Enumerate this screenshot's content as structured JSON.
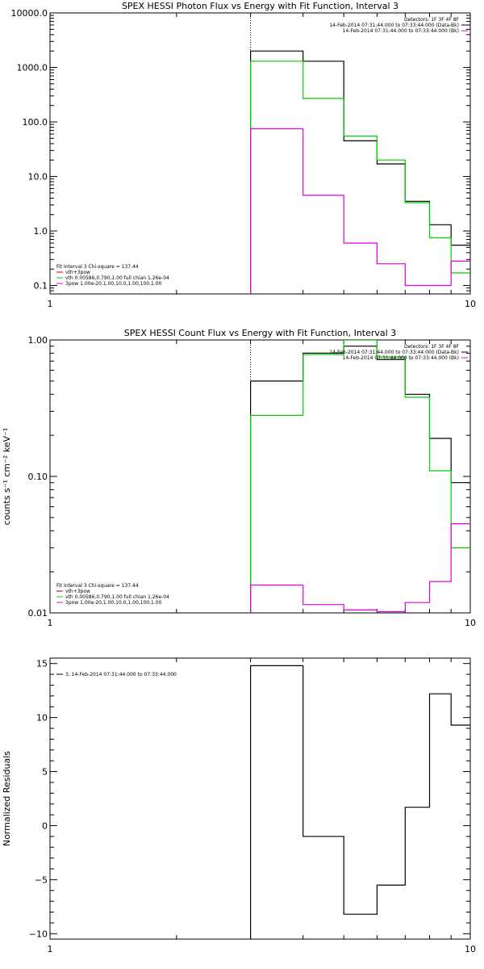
{
  "chart_data": [
    {
      "type": "line",
      "title": "SPEX HESSI Photon Flux vs Energy with Fit Function, Interval 3",
      "xlabel": "",
      "ylabel": "",
      "x_scale": "log",
      "y_scale": "log",
      "xlim": [
        1,
        10
      ],
      "ylim": [
        0.07,
        10000
      ],
      "x_tick_labels": [
        "1",
        "10"
      ],
      "y_tick_labels": [
        "10000.0",
        "1000.0",
        "100.0",
        "10.0",
        "1.0",
        "0.1"
      ],
      "y_tick_values": [
        10000,
        1000,
        100,
        10,
        1,
        0.1
      ],
      "vline_x": 3,
      "bin_edges": [
        3,
        4,
        5,
        6,
        7,
        8,
        9,
        10
      ],
      "series": [
        {
          "key": "data",
          "color": "#000000",
          "values": [
            2000,
            1300,
            45,
            17,
            3.5,
            1.3,
            0.55
          ]
        },
        {
          "key": "fit",
          "color": "#00cc00",
          "values": [
            1300,
            270,
            55,
            20,
            3.3,
            0.75,
            0.17
          ]
        },
        {
          "key": "spec",
          "color": "#dd00dd",
          "values": [
            75,
            4.5,
            0.6,
            0.25,
            0.1,
            0.1,
            0.28
          ]
        }
      ],
      "legend_right": [
        {
          "text": "Detectors: 1F 3F 4F 8F",
          "color": ""
        },
        {
          "text": "14-Feb-2014 07:31:44.000 to 07:33:44.000 (Data-Bk)",
          "color": "#000000"
        },
        {
          "text": "14-Feb-2014 07:31:44.000 to 07:33:44.000 (Bk)",
          "color": "#dd00dd"
        }
      ],
      "legend_left": [
        {
          "text": "Fit Interval 3   Chi-square = 137.44",
          "color": ""
        },
        {
          "text": "vth+3pow",
          "color": "#cc0000"
        },
        {
          "text": "vth 0.00586,0.790,1.00  full chian 1.26e-04",
          "color": "#00cc00"
        },
        {
          "text": "3pow 1.00e-20,1.00,10.0,1.00,100,1.00",
          "color": "#dd00dd"
        }
      ]
    },
    {
      "type": "line",
      "title": "SPEX HESSI Count Flux vs Energy with Fit Function, Interval 3",
      "xlabel": "",
      "ylabel": "counts s⁻¹ cm⁻² keV⁻¹",
      "x_scale": "log",
      "y_scale": "log",
      "xlim": [
        1,
        10
      ],
      "ylim": [
        0.01,
        1.0
      ],
      "x_tick_labels": [
        "1",
        "10"
      ],
      "y_tick_labels": [
        "1.00",
        "0.10",
        "0.01"
      ],
      "y_tick_values": [
        1,
        0.1,
        0.01
      ],
      "vline_x": 3,
      "bin_edges": [
        3,
        4,
        5,
        6,
        7,
        8,
        9,
        10
      ],
      "series": [
        {
          "key": "data",
          "color": "#000000",
          "values": [
            0.5,
            0.8,
            0.9,
            0.72,
            0.4,
            0.19,
            0.09
          ]
        },
        {
          "key": "fit",
          "color": "#00cc00",
          "values": [
            0.28,
            0.78,
            1.0,
            0.75,
            0.38,
            0.11,
            0.03
          ]
        },
        {
          "key": "spec",
          "color": "#dd00dd",
          "values": [
            0.016,
            0.0115,
            0.0105,
            0.0102,
            0.0119,
            0.017,
            0.045
          ]
        }
      ],
      "legend_right": [
        {
          "text": "Detectors: 1F 3F 4F 8F",
          "color": ""
        },
        {
          "text": "14-Feb-2014 07:31:44.000 to 07:33:44.000 (Data-Bk)",
          "color": "#000000"
        },
        {
          "text": "14-Feb-2014 07:31:44.000 to 07:33:44.000 (Bk)",
          "color": "#dd00dd"
        }
      ],
      "legend_left": [
        {
          "text": "Fit Interval 3   Chi-square = 137.44",
          "color": ""
        },
        {
          "text": "vth+3pow",
          "color": "#cc0000"
        },
        {
          "text": "vth 0.00586,0.790,1.00  full chian 1.26e-04",
          "color": "#00cc00"
        },
        {
          "text": "3pow 1.00e-20,1.00,10.0,1.00,100,1.00",
          "color": "#dd00dd"
        }
      ]
    },
    {
      "type": "line",
      "title": "",
      "xlabel": "",
      "ylabel": "Normalized Residuals",
      "x_scale": "log",
      "y_scale": "linear",
      "xlim": [
        1,
        10
      ],
      "ylim": [
        -10.5,
        15.5
      ],
      "x_tick_labels": [
        "1",
        "10"
      ],
      "y_tick_labels": [
        "15",
        "10",
        "5",
        "0",
        "−5",
        "−10"
      ],
      "y_tick_values": [
        15,
        10,
        5,
        0,
        -5,
        -10
      ],
      "vline_x": null,
      "bin_edges": [
        3,
        4,
        5,
        6,
        7,
        8,
        9,
        10
      ],
      "series": [
        {
          "key": "residuals",
          "color": "#000000",
          "values": [
            14.8,
            -1.0,
            -8.2,
            -5.5,
            1.7,
            12.2,
            9.3
          ]
        }
      ],
      "legend_right": [],
      "legend_left": [
        {
          "text": "3, 14-Feb-2014 07:31:44.000 to 07:33:44.000",
          "color": "#000000"
        }
      ]
    }
  ]
}
